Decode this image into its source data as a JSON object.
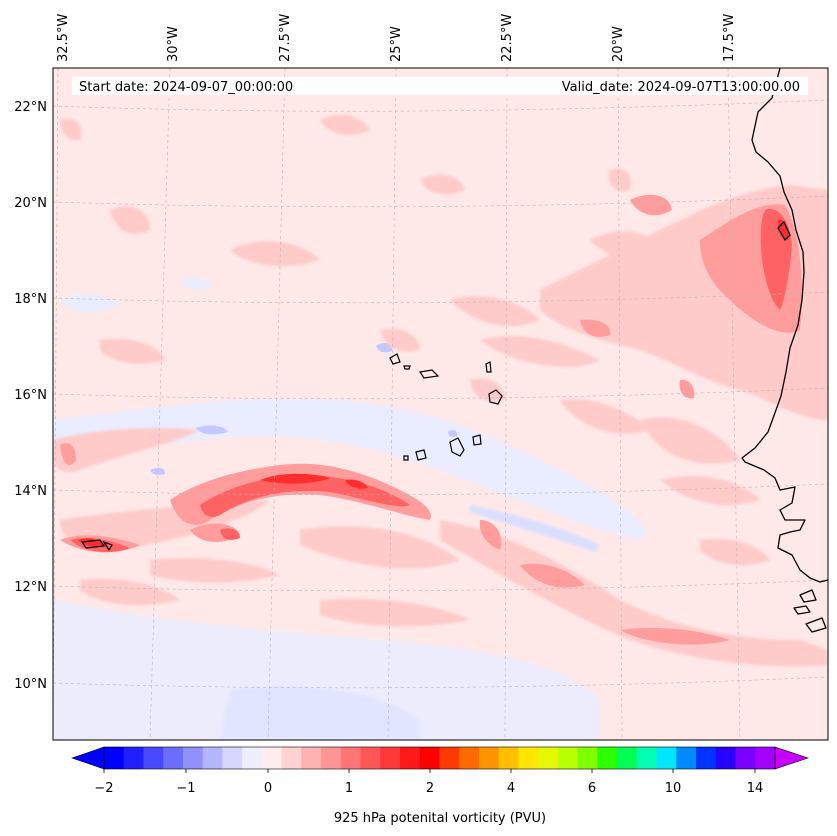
{
  "header": {
    "start_date": "Start date: 2024-09-07_00:00:00",
    "valid_date": "Valid_date: 2024-09-07T13:00:00.00"
  },
  "map": {
    "longitude_labels": [
      "32.5°W",
      "30°W",
      "27.5°W",
      "25°W",
      "22.5°W",
      "20°W",
      "17.5°W"
    ],
    "latitude_labels": [
      "22°N",
      "20°N",
      "18°N",
      "16°N",
      "14°N",
      "12°N",
      "10°N"
    ],
    "field": "925 hPa potential vorticity",
    "colors": {
      "background_field": "#ffe8e8",
      "weak_positive": "#ffc9c9",
      "moderate_positive": "#ff9a9a",
      "strong_positive": "#ff5a5a",
      "very_strong": "#ff2a2a",
      "weak_negative": "#e9ebff",
      "negative": "#c9ccff",
      "coastline": "#000000"
    }
  },
  "colorbar": {
    "label": "925 hPa potenital vorticity (PVU)",
    "tick_labels": [
      "−2",
      "−1",
      "0",
      "1",
      "2",
      "4",
      "6",
      "10",
      "14"
    ],
    "colors": [
      "#0000ff",
      "#2020ff",
      "#4848ff",
      "#6c6cff",
      "#9090ff",
      "#b4b4ff",
      "#d6d6ff",
      "#eeeeff",
      "#ffecec",
      "#ffd2d2",
      "#ffb2b2",
      "#ff9494",
      "#ff7474",
      "#ff5656",
      "#ff3838",
      "#ff1a1a",
      "#ff0000",
      "#ff3a00",
      "#ff6a00",
      "#ff9400",
      "#ffbe00",
      "#ffe600",
      "#e6f800",
      "#b8ff00",
      "#80ff00",
      "#2cff00",
      "#00ff54",
      "#00ffb0",
      "#00e6ff",
      "#008aff",
      "#0033ff",
      "#2a00ff",
      "#7a00ff",
      "#a400ff"
    ],
    "extend_low_color": "#0000ff",
    "extend_high_color": "#c800ff"
  }
}
